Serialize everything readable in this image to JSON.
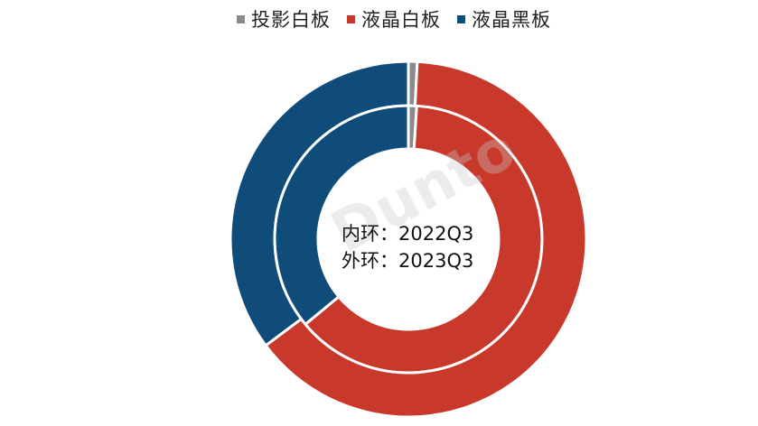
{
  "chart_data": {
    "type": "doughnut",
    "legend_position": "top",
    "categories": [
      "投影白板",
      "液晶白板",
      "液晶黑板"
    ],
    "colors": [
      "#8a8a8a",
      "#c8392b",
      "#0f4c7a"
    ],
    "series": [
      {
        "name": "2022Q3",
        "ring": "inner",
        "values": [
          1.0,
          63.0,
          36.0
        ]
      },
      {
        "name": "2023Q3",
        "ring": "outer",
        "values": [
          0.8,
          64.0,
          35.2
        ]
      }
    ]
  },
  "center_text": {
    "line1_prefix": "内环：",
    "line1_value": "2022Q3",
    "line2_prefix": "外环：",
    "line2_value": "2023Q3"
  },
  "watermark": "Dunto"
}
